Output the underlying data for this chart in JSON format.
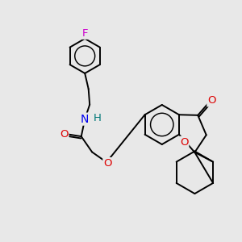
{
  "background_color": "#e8e8e8",
  "bond_color": "#000000",
  "atom_colors": {
    "F": "#cc00cc",
    "O": "#dd0000",
    "N": "#0000ee",
    "H": "#007777",
    "C": "#000000"
  },
  "bond_width": 1.4,
  "figsize": [
    3.0,
    3.0
  ],
  "dpi": 100,
  "xlim": [
    0,
    10
  ],
  "ylim": [
    0,
    10
  ]
}
